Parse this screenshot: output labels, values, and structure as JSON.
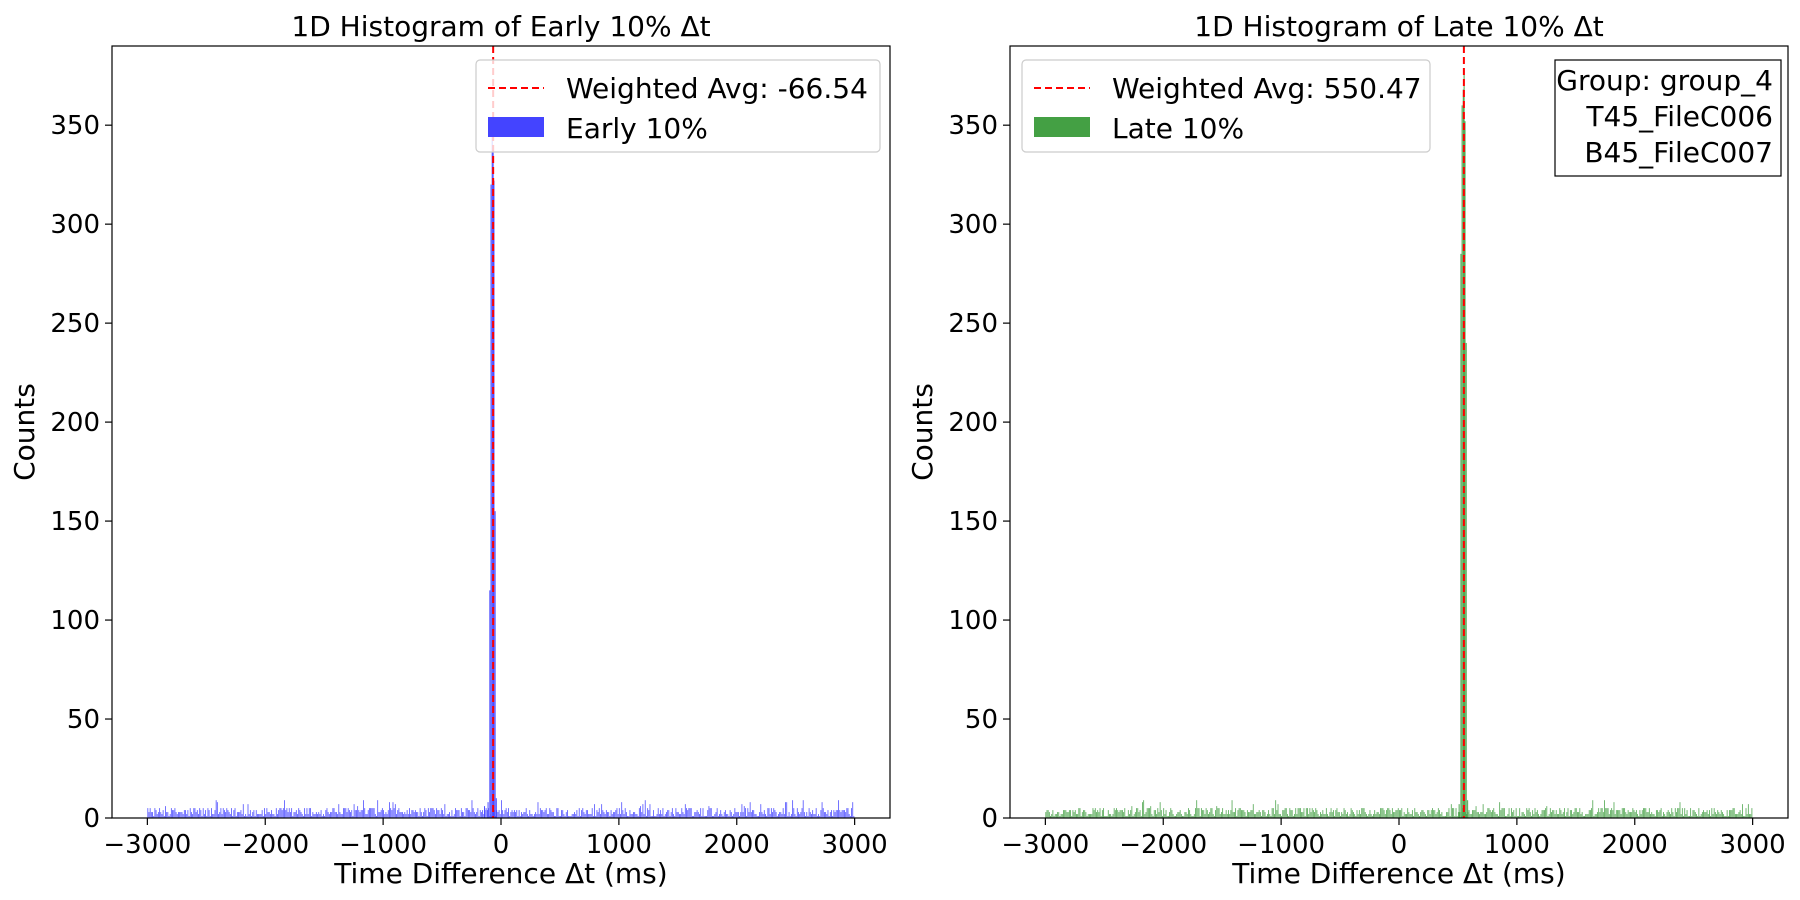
{
  "chart_data": [
    {
      "type": "bar",
      "title": "1D Histogram of Early 10% Δt",
      "xlabel": "Time Difference Δt (ms)",
      "ylabel": "Counts",
      "xlim": [
        -3300,
        3300
      ],
      "ylim": [
        0,
        390
      ],
      "xticks": [
        -3000,
        -2000,
        -1000,
        0,
        1000,
        2000,
        3000
      ],
      "xtick_labels": [
        "−3000",
        "−2000",
        "−1000",
        "0",
        "1000",
        "2000",
        "3000"
      ],
      "yticks": [
        0,
        50,
        100,
        150,
        200,
        250,
        300,
        350
      ],
      "ytick_labels": [
        "0",
        "50",
        "100",
        "150",
        "200",
        "250",
        "300",
        "350"
      ],
      "grid": false,
      "legend_position": "top-right",
      "series_color": "#4444ff",
      "avg_color": "#ff0000",
      "weighted_avg": -66.54,
      "legend": {
        "avg_label": "Weighted Avg: -66.54",
        "series_label": "Early 10%"
      },
      "background_range": [
        -3000,
        3000
      ],
      "background_level": 3,
      "bins": [
        {
          "x": -140,
          "y": 6
        },
        {
          "x": -110,
          "y": 8
        },
        {
          "x": -95,
          "y": 115
        },
        {
          "x": -85,
          "y": 320
        },
        {
          "x": -75,
          "y": 345
        },
        {
          "x": -67,
          "y": 340
        },
        {
          "x": -60,
          "y": 322
        },
        {
          "x": -50,
          "y": 155
        },
        {
          "x": -40,
          "y": 10
        }
      ]
    },
    {
      "type": "bar",
      "title": "1D Histogram of Late 10% Δt",
      "xlabel": "Time Difference Δt (ms)",
      "ylabel": "Counts",
      "xlim": [
        -3300,
        3300
      ],
      "ylim": [
        0,
        390
      ],
      "xticks": [
        -3000,
        -2000,
        -1000,
        0,
        1000,
        2000,
        3000
      ],
      "xtick_labels": [
        "−3000",
        "−2000",
        "−1000",
        "0",
        "1000",
        "2000",
        "3000"
      ],
      "yticks": [
        0,
        50,
        100,
        150,
        200,
        250,
        300,
        350
      ],
      "ytick_labels": [
        "0",
        "50",
        "100",
        "150",
        "200",
        "250",
        "300",
        "350"
      ],
      "grid": false,
      "legend_position": "top-left",
      "series_color": "#44a044",
      "avg_color": "#ff0000",
      "weighted_avg": 550.47,
      "legend": {
        "avg_label": "Weighted Avg: 550.47",
        "series_label": "Late 10%"
      },
      "annotation_lines": [
        "Group: group_4",
        "T45_FileC006",
        "B45_FileC007"
      ],
      "annotation_position": "top-right",
      "background_range": [
        -3000,
        3000
      ],
      "background_level": 3,
      "bins": [
        {
          "x": 510,
          "y": 7
        },
        {
          "x": 525,
          "y": 285
        },
        {
          "x": 535,
          "y": 360
        },
        {
          "x": 545,
          "y": 368
        },
        {
          "x": 552,
          "y": 378
        },
        {
          "x": 560,
          "y": 352
        },
        {
          "x": 570,
          "y": 240
        },
        {
          "x": 582,
          "y": 9
        }
      ]
    }
  ]
}
